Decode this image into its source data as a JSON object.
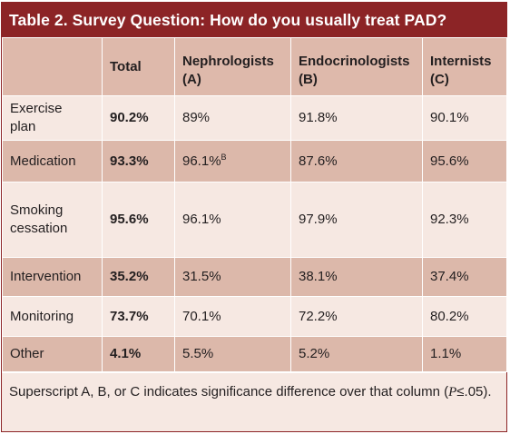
{
  "title": "Table 2. Survey Question: How do you usually treat PAD?",
  "columns": {
    "blank": "",
    "total": "Total",
    "nephrologists": "Nephrologists (A)",
    "endocrinologists": "Endocrinologists (B)",
    "internists": "Internists (C)"
  },
  "rows": [
    {
      "label": "Exercise plan",
      "total": "90.2%",
      "nephrologists": "89%",
      "endocrinologists": "91.8%",
      "internists": "90.1%",
      "nephrologists_sup": ""
    },
    {
      "label": "Medication",
      "total": "93.3%",
      "nephrologists": "96.1%",
      "endocrinologists": "87.6%",
      "internists": "95.6%",
      "nephrologists_sup": "B"
    },
    {
      "label": "Smoking cessation",
      "total": "95.6%",
      "nephrologists": "96.1%",
      "endocrinologists": "97.9%",
      "internists": "92.3%",
      "nephrologists_sup": ""
    },
    {
      "label": "Intervention",
      "total": "35.2%",
      "nephrologists": "31.5%",
      "endocrinologists": "38.1%",
      "internists": "37.4%",
      "nephrologists_sup": ""
    },
    {
      "label": "Monitoring",
      "total": "73.7%",
      "nephrologists": "70.1%",
      "endocrinologists": "72.2%",
      "internists": "80.2%",
      "nephrologists_sup": ""
    },
    {
      "label": "Other",
      "total": "4.1%",
      "nephrologists": "5.5%",
      "endocrinologists": "5.2%",
      "internists": "1.1%",
      "nephrologists_sup": ""
    }
  ],
  "footnote": {
    "text_before": "Superscript A, B, or C indicates significance difference over that column (",
    "p_symbol": "P",
    "text_after": "≤.05)."
  },
  "colors": {
    "title_bar": "#8c2426",
    "header_row": "#deb9ab",
    "light_row": "#f6e8e2",
    "dark_row": "#dcb8aa"
  }
}
